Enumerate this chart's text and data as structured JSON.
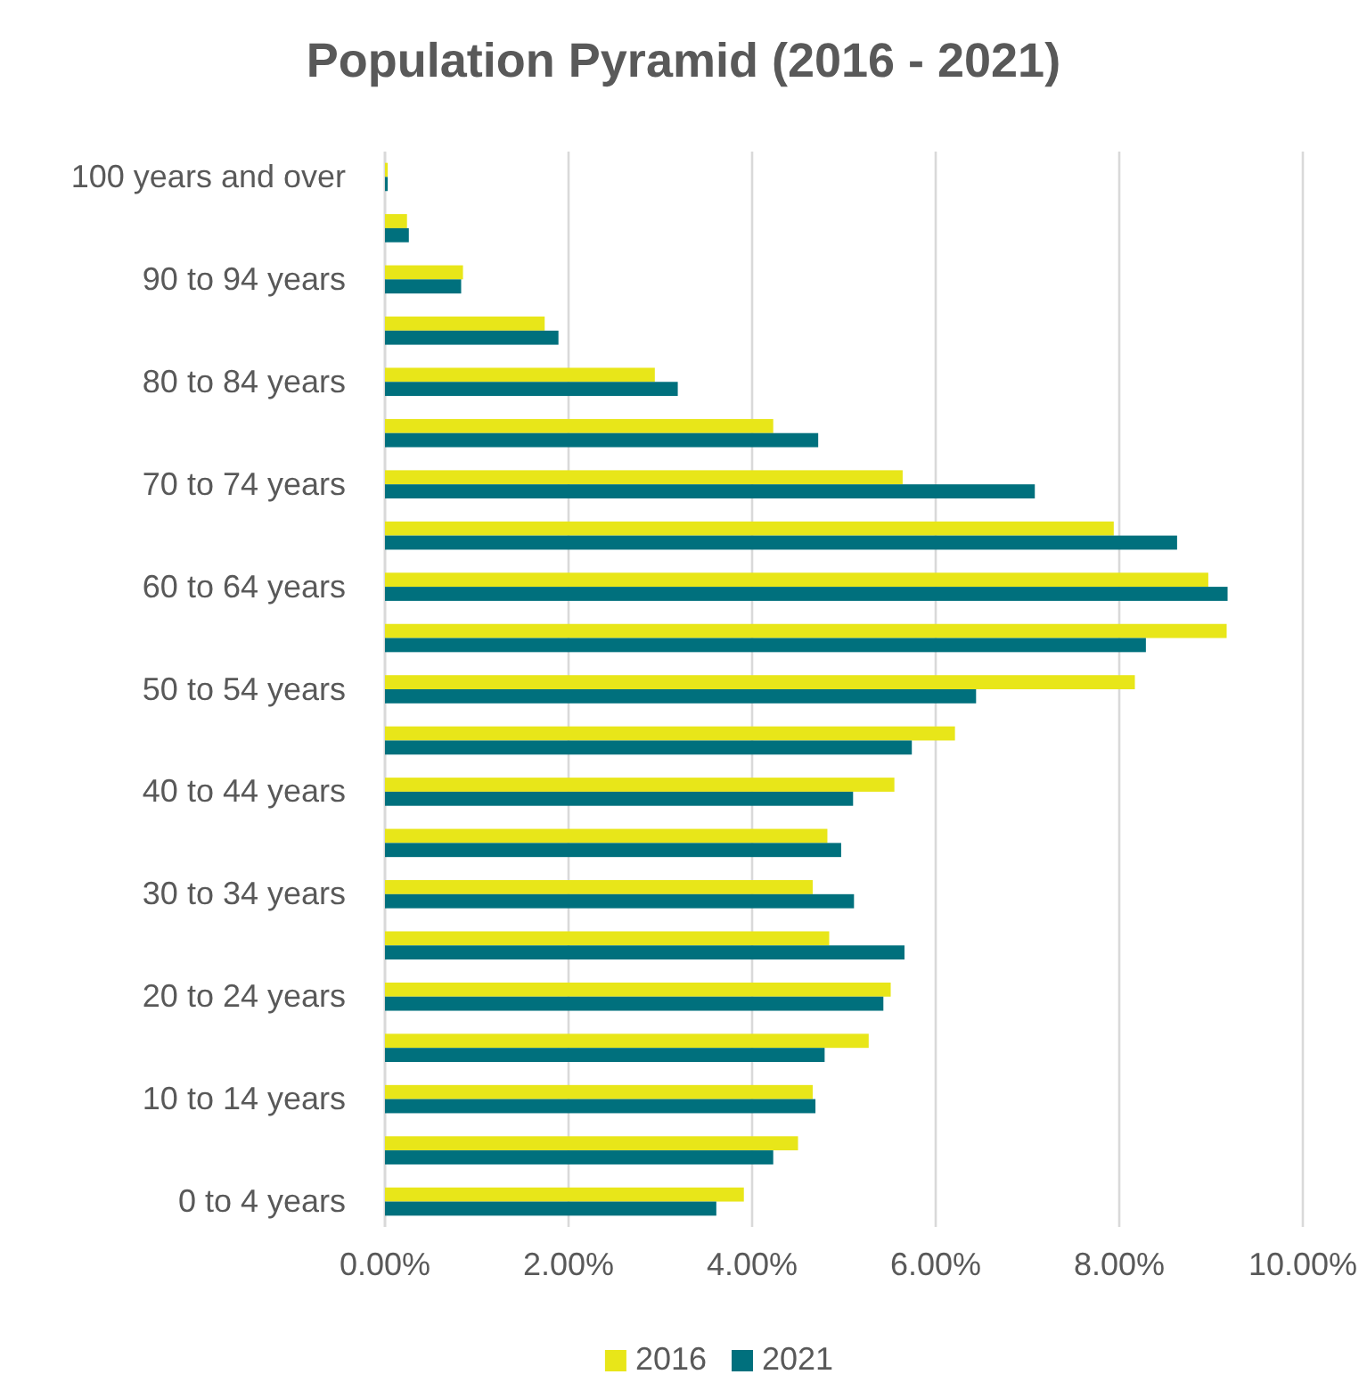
{
  "chart_data": {
    "type": "bar",
    "orientation": "horizontal",
    "title": "Population Pyramid (2016 - 2021)",
    "categories": [
      "100 years and over",
      null,
      "90 to 94 years",
      null,
      "80 to 84 years",
      null,
      "70 to 74 years",
      null,
      "60 to 64 years",
      null,
      "50 to 54 years",
      null,
      "40 to 44 years",
      null,
      "30 to 34 years",
      null,
      "20 to 24 years",
      null,
      "10 to 14 years",
      null,
      "0 to 4 years"
    ],
    "series": [
      {
        "name": "2016",
        "color": "#e8e619",
        "values": [
          0.03,
          0.24,
          0.85,
          1.74,
          2.94,
          4.23,
          5.64,
          7.94,
          8.97,
          9.17,
          8.17,
          6.21,
          5.55,
          4.82,
          4.66,
          4.84,
          5.51,
          5.27,
          4.66,
          4.5,
          3.91
        ]
      },
      {
        "name": "2021",
        "color": "#00707d",
        "values": [
          0.03,
          0.26,
          0.83,
          1.89,
          3.19,
          4.72,
          7.08,
          8.63,
          9.18,
          8.29,
          6.44,
          5.74,
          5.1,
          4.97,
          5.11,
          5.66,
          5.43,
          4.79,
          4.69,
          4.23,
          3.61
        ]
      }
    ],
    "xlim": [
      0,
      10
    ],
    "xticks": [
      {
        "value": 0,
        "label": "0.00%"
      },
      {
        "value": 2,
        "label": "2.00%"
      },
      {
        "value": 4,
        "label": "4.00%"
      },
      {
        "value": 6,
        "label": "6.00%"
      },
      {
        "value": 8,
        "label": "8.00%"
      },
      {
        "value": 10,
        "label": "10.00%"
      }
    ],
    "grid": "x",
    "legend": "bottom"
  }
}
